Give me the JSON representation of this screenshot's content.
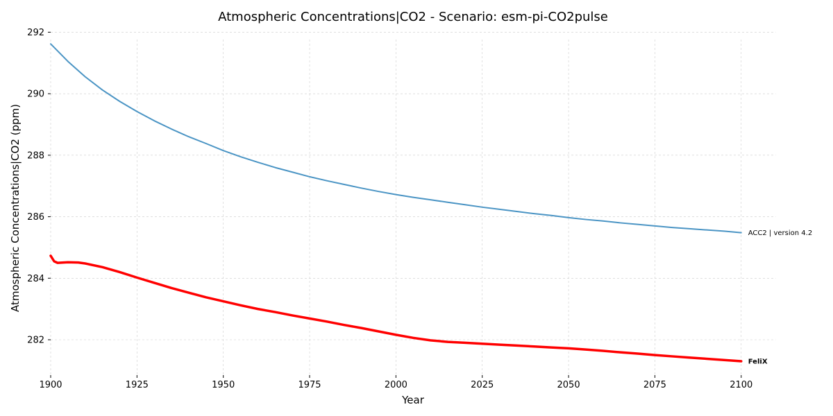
{
  "chart_data": {
    "type": "line",
    "title": "Atmospheric Concentrations|CO2 - Scenario: esm-pi-CO2pulse",
    "xlabel": "Year",
    "ylabel": "Atmospheric Concentrations|CO2 (ppm)",
    "xlim": [
      1900,
      2110
    ],
    "ylim": [
      280.85,
      292.1
    ],
    "x_ticks": [
      1900,
      1925,
      1950,
      1975,
      2000,
      2025,
      2050,
      2075,
      2100
    ],
    "y_ticks": [
      282,
      284,
      286,
      288,
      290,
      292
    ],
    "grid": true,
    "series": [
      {
        "name": "ACC2 | version 4.2",
        "color": "#4a94c4",
        "line_width": 2,
        "label_bold": false,
        "points": [
          [
            1900,
            291.62
          ],
          [
            1905,
            291.05
          ],
          [
            1910,
            290.55
          ],
          [
            1915,
            290.12
          ],
          [
            1920,
            289.75
          ],
          [
            1925,
            289.42
          ],
          [
            1930,
            289.12
          ],
          [
            1935,
            288.85
          ],
          [
            1940,
            288.6
          ],
          [
            1945,
            288.38
          ],
          [
            1950,
            288.15
          ],
          [
            1955,
            287.95
          ],
          [
            1960,
            287.77
          ],
          [
            1965,
            287.6
          ],
          [
            1970,
            287.45
          ],
          [
            1975,
            287.3
          ],
          [
            1980,
            287.17
          ],
          [
            1985,
            287.05
          ],
          [
            1990,
            286.93
          ],
          [
            1995,
            286.82
          ],
          [
            2000,
            286.72
          ],
          [
            2005,
            286.63
          ],
          [
            2010,
            286.55
          ],
          [
            2015,
            286.47
          ],
          [
            2020,
            286.39
          ],
          [
            2025,
            286.31
          ],
          [
            2030,
            286.24
          ],
          [
            2035,
            286.17
          ],
          [
            2040,
            286.1
          ],
          [
            2045,
            286.04
          ],
          [
            2050,
            285.97
          ],
          [
            2055,
            285.91
          ],
          [
            2060,
            285.86
          ],
          [
            2065,
            285.8
          ],
          [
            2070,
            285.75
          ],
          [
            2075,
            285.7
          ],
          [
            2080,
            285.65
          ],
          [
            2085,
            285.61
          ],
          [
            2090,
            285.57
          ],
          [
            2095,
            285.53
          ],
          [
            2100,
            285.48
          ]
        ]
      },
      {
        "name": "FeliX",
        "color": "#ff0000",
        "line_width": 3.5,
        "label_bold": true,
        "points": [
          [
            1900,
            284.73
          ],
          [
            1901,
            284.55
          ],
          [
            1902,
            284.5
          ],
          [
            1905,
            284.52
          ],
          [
            1908,
            284.51
          ],
          [
            1910,
            284.48
          ],
          [
            1915,
            284.36
          ],
          [
            1920,
            284.2
          ],
          [
            1925,
            284.02
          ],
          [
            1930,
            283.85
          ],
          [
            1935,
            283.68
          ],
          [
            1940,
            283.53
          ],
          [
            1945,
            283.38
          ],
          [
            1950,
            283.25
          ],
          [
            1955,
            283.12
          ],
          [
            1960,
            283.0
          ],
          [
            1965,
            282.9
          ],
          [
            1970,
            282.79
          ],
          [
            1975,
            282.69
          ],
          [
            1980,
            282.59
          ],
          [
            1985,
            282.48
          ],
          [
            1990,
            282.38
          ],
          [
            1995,
            282.27
          ],
          [
            2000,
            282.16
          ],
          [
            2005,
            282.06
          ],
          [
            2010,
            281.98
          ],
          [
            2015,
            281.93
          ],
          [
            2020,
            281.9
          ],
          [
            2025,
            281.87
          ],
          [
            2030,
            281.84
          ],
          [
            2035,
            281.81
          ],
          [
            2040,
            281.78
          ],
          [
            2045,
            281.75
          ],
          [
            2050,
            281.72
          ],
          [
            2055,
            281.68
          ],
          [
            2060,
            281.64
          ],
          [
            2065,
            281.59
          ],
          [
            2070,
            281.55
          ],
          [
            2075,
            281.5
          ],
          [
            2080,
            281.46
          ],
          [
            2085,
            281.42
          ],
          [
            2090,
            281.38
          ],
          [
            2095,
            281.34
          ],
          [
            2100,
            281.3
          ]
        ]
      }
    ]
  }
}
